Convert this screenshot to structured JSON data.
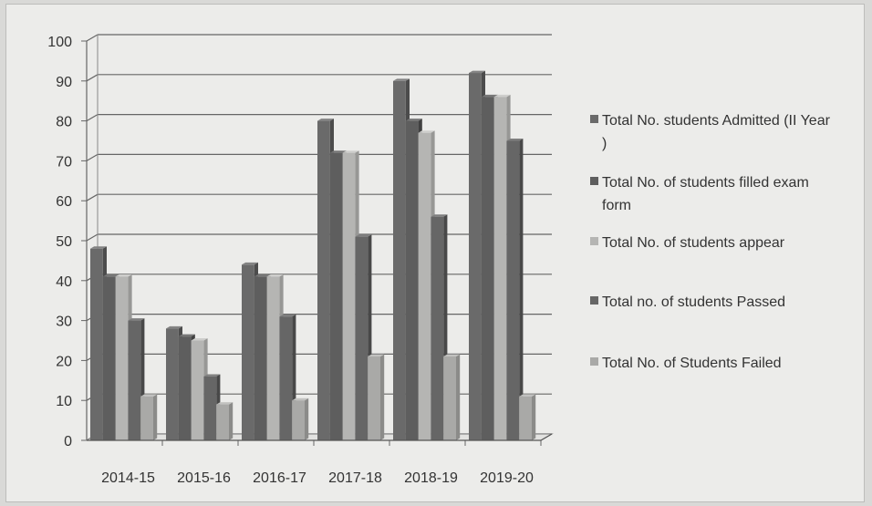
{
  "chart_data": {
    "type": "bar",
    "categories": [
      "2014-15",
      "2015-16",
      "2016-17",
      "2017-18",
      "2018-19",
      "2019-20"
    ],
    "series": [
      {
        "name": "Total No. students Admitted (II Year )",
        "values": [
          48,
          28,
          44,
          80,
          90,
          92
        ],
        "color": "#6a6a6a"
      },
      {
        "name": "Total No. of students filled exam form",
        "values": [
          41,
          26,
          41,
          72,
          80,
          86
        ],
        "color": "#5e5e5e"
      },
      {
        "name": "Total No. of students appear",
        "values": [
          41,
          25,
          41,
          72,
          77,
          86
        ],
        "color": "#b5b5b3"
      },
      {
        "name": "Total no. of students Passed",
        "values": [
          30,
          16,
          31,
          51,
          56,
          75
        ],
        "color": "#666666"
      },
      {
        "name": "Total No. of Students Failed",
        "values": [
          11,
          9,
          10,
          21,
          21,
          11
        ],
        "color": "#a9a9a7"
      }
    ],
    "ylim": [
      0,
      100
    ],
    "yticks": [
      0,
      10,
      20,
      30,
      40,
      50,
      60,
      70,
      80,
      90,
      100
    ],
    "grid": true,
    "legend_position": "right"
  }
}
